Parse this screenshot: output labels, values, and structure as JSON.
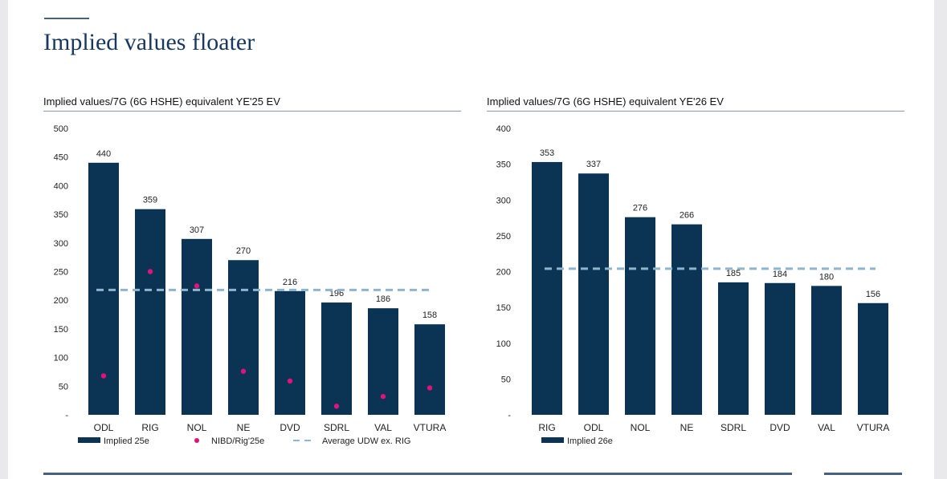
{
  "page": {
    "title": "Implied values floater"
  },
  "colors": {
    "bar": "#0b3353",
    "nibd": "#e0137a",
    "average": "#8fb4cd",
    "title": "#17375e"
  },
  "chart_data": [
    {
      "type": "bar",
      "title": "Implied values/7G (6G HSHE) equivalent YE'25 EV",
      "categories": [
        "ODL",
        "RIG",
        "NOL",
        "NE",
        "DVD",
        "SDRL",
        "VAL",
        "VTURA"
      ],
      "series": [
        {
          "name": "Implied 25e",
          "type": "bar",
          "values": [
            440,
            359,
            307,
            270,
            216,
            196,
            186,
            158
          ]
        },
        {
          "name": "NIBD/Rig'25e",
          "type": "scatter",
          "values": [
            68,
            250,
            225,
            76,
            59,
            15,
            32,
            47
          ]
        },
        {
          "name": "Average UDW ex. RIG",
          "type": "line",
          "values": [
            218,
            218,
            218,
            218,
            218,
            218,
            218,
            218
          ]
        }
      ],
      "ylim": [
        0,
        500
      ],
      "yticks": [
        0,
        50,
        100,
        150,
        200,
        250,
        300,
        350,
        400,
        450,
        500
      ],
      "yticklabels": [
        "-",
        "50",
        "100",
        "150",
        "200",
        "250",
        "300",
        "350",
        "400",
        "450",
        "500"
      ],
      "data_labels": [
        "440",
        "359",
        "307",
        "270",
        "216",
        "196",
        "186",
        "158"
      ],
      "legend": [
        "Implied 25e",
        "NIBD/Rig'25e",
        "Average UDW ex. RIG"
      ],
      "legend_position": "bottom",
      "grid": false
    },
    {
      "type": "bar",
      "title": "Implied values/7G (6G HSHE) equivalent YE'26 EV",
      "categories": [
        "RIG",
        "ODL",
        "NOL",
        "NE",
        "SDRL",
        "DVD",
        "VAL",
        "VTURA"
      ],
      "series": [
        {
          "name": "Implied 26e",
          "type": "bar",
          "values": [
            353,
            337,
            276,
            266,
            185,
            184,
            180,
            156
          ]
        },
        {
          "name": "",
          "type": "line",
          "values": [
            204,
            204,
            204,
            204,
            204,
            204,
            204,
            204
          ]
        }
      ],
      "ylim": [
        0,
        400
      ],
      "yticks": [
        0,
        50,
        100,
        150,
        200,
        250,
        300,
        350,
        400
      ],
      "yticklabels": [
        "-",
        "50",
        "100",
        "150",
        "200",
        "250",
        "300",
        "350",
        "400"
      ],
      "data_labels": [
        "353",
        "337",
        "276",
        "266",
        "185",
        "184",
        "180",
        "156"
      ],
      "legend": [
        "Implied 26e"
      ],
      "legend_position": "bottom",
      "grid": false
    }
  ]
}
